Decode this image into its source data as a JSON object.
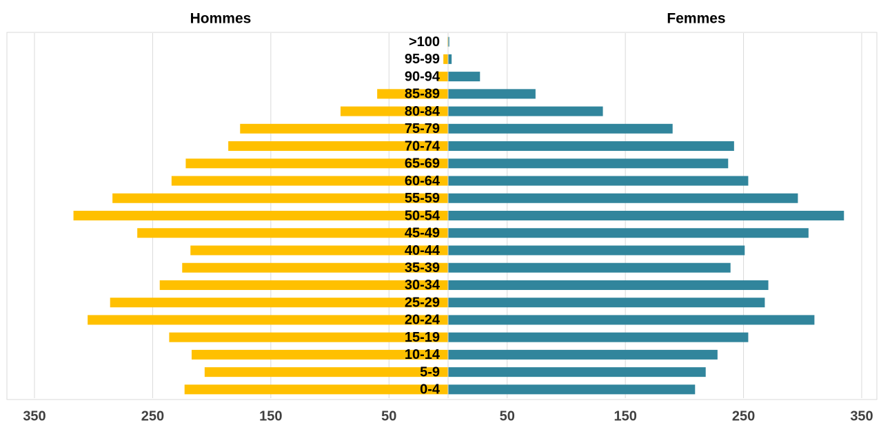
{
  "chart_data": {
    "type": "pyramid",
    "categories": [
      "0-4",
      "5-9",
      "10-14",
      "15-19",
      "20-24",
      "25-29",
      "30-34",
      "35-39",
      "40-44",
      "45-49",
      "50-54",
      "55-59",
      "60-64",
      "65-69",
      "70-74",
      "75-79",
      "80-84",
      "85-89",
      "90-94",
      "95-99",
      ">100"
    ],
    "series": [
      {
        "name": "Hommes",
        "color": "#ffc000",
        "values": [
          -223,
          -206,
          -217,
          -236,
          -305,
          -286,
          -244,
          -225,
          -218,
          -263,
          -317,
          -284,
          -234,
          -222,
          -186,
          -176,
          -91,
          -60,
          -9,
          -4,
          -0.5
        ]
      },
      {
        "name": "Femmes",
        "color": "#31859c",
        "values": [
          209,
          218,
          228,
          254,
          310,
          268,
          271,
          239,
          251,
          305,
          335,
          296,
          254,
          237,
          242,
          190,
          131,
          74,
          27,
          3,
          1
        ]
      }
    ],
    "xlim": [
      -350,
      350
    ],
    "xticks": [
      {
        "value": -350,
        "label": "350"
      },
      {
        "value": -250,
        "label": "250"
      },
      {
        "value": -150,
        "label": "150"
      },
      {
        "value": -50,
        "label": "50"
      },
      50,
      150,
      250,
      350
    ],
    "grid": true
  }
}
